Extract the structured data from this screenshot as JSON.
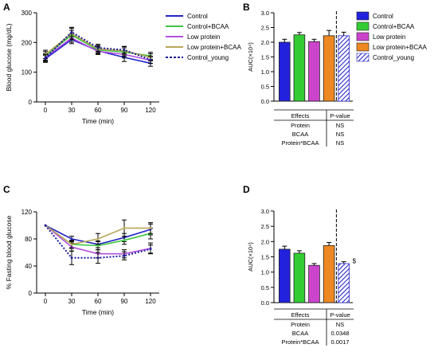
{
  "colors": {
    "control": "#2323c8",
    "control_bcaa": "#3fc63f",
    "low_protein": "#b24fe0",
    "low_protein_bcaa": "#b7a75a",
    "control_young": "#1b1b9a",
    "bar_control": "#2222dd",
    "bar_control_bcaa": "#33cc33",
    "bar_low_protein": "#cc44cc",
    "bar_low_protein_bcaa": "#ee8822",
    "bar_control_young_hatch": "#2a2acc"
  },
  "legend": {
    "line_entries": [
      "Control",
      "Control+BCAA",
      "Low protein",
      "Low protein+BCAA",
      "Control_young"
    ],
    "bar_entries": [
      "Control",
      "Control+BCAA",
      "Low protein",
      "Low protein+BCAA",
      "Control_young"
    ]
  },
  "chart_data": [
    {
      "panel": "A",
      "type": "line",
      "xlabel": "Time (min)",
      "ylabel": "Blood glucose (mg/dL)",
      "x": [
        0,
        30,
        60,
        90,
        120
      ],
      "xticks": [
        "0",
        "30",
        "60",
        "90",
        "120"
      ],
      "yticks": [
        "0",
        "100",
        "200",
        "300"
      ],
      "xlim": [
        -10,
        130
      ],
      "ylim": [
        0,
        300
      ],
      "series": [
        {
          "name": "Control",
          "values": [
            145,
            210,
            172,
            150,
            130
          ],
          "err": [
            12,
            14,
            12,
            14,
            10
          ],
          "style": "solid"
        },
        {
          "name": "Control+BCAA",
          "values": [
            155,
            225,
            175,
            168,
            155
          ],
          "err": [
            14,
            16,
            12,
            14,
            12
          ],
          "style": "solid"
        },
        {
          "name": "Low protein",
          "values": [
            150,
            215,
            170,
            160,
            140
          ],
          "err": [
            12,
            14,
            10,
            12,
            10
          ],
          "style": "solid"
        },
        {
          "name": "Low protein+BCAA",
          "values": [
            160,
            230,
            178,
            172,
            150
          ],
          "err": [
            14,
            18,
            12,
            14,
            12
          ],
          "style": "solid"
        },
        {
          "name": "Control_young",
          "values": [
            148,
            235,
            182,
            175,
            142
          ],
          "err": [
            12,
            16,
            12,
            12,
            12
          ],
          "style": "dotted"
        }
      ]
    },
    {
      "panel": "B",
      "type": "bar",
      "ylabel": "AUC(×10⁴)",
      "categories": [
        "Control",
        "Control+BCAA",
        "Low protein",
        "Low protein+BCAA",
        "Control_young"
      ],
      "values": [
        2.0,
        2.25,
        2.02,
        2.22,
        2.22
      ],
      "err": [
        0.1,
        0.08,
        0.08,
        0.18,
        0.12
      ],
      "yticks": [
        "0.0",
        "0.5",
        "1.0",
        "1.5",
        "2.0",
        "2.5",
        "3.0"
      ],
      "ylim": [
        0,
        3.0
      ],
      "divider_after": 4,
      "table": {
        "headers": [
          "Effects",
          "P-value"
        ],
        "rows": [
          [
            "Protein",
            "NS"
          ],
          [
            "BCAA",
            "NS"
          ],
          [
            "Protein*BCAA",
            "NS"
          ]
        ]
      }
    },
    {
      "panel": "C",
      "type": "line",
      "xlabel": "Time (min)",
      "ylabel": "% Fasting blood glucose",
      "x": [
        0,
        30,
        60,
        90,
        120
      ],
      "xticks": [
        "0",
        "30",
        "60",
        "90",
        "120"
      ],
      "yticks": [
        "0",
        "40",
        "80",
        "120"
      ],
      "xlim": [
        -10,
        130
      ],
      "ylim": [
        0,
        120
      ],
      "series": [
        {
          "name": "Control",
          "values": [
            100,
            80,
            72,
            82,
            94
          ],
          "err": [
            0,
            4,
            5,
            6,
            8
          ],
          "style": "solid"
        },
        {
          "name": "Control+BCAA",
          "values": [
            100,
            72,
            70,
            78,
            88
          ],
          "err": [
            0,
            5,
            6,
            6,
            8
          ],
          "style": "solid"
        },
        {
          "name": "Low protein",
          "values": [
            100,
            68,
            58,
            58,
            66
          ],
          "err": [
            0,
            6,
            6,
            6,
            8
          ],
          "style": "solid"
        },
        {
          "name": "Low protein+BCAA",
          "values": [
            100,
            72,
            80,
            96,
            96
          ],
          "err": [
            0,
            6,
            8,
            12,
            8
          ],
          "style": "solid"
        },
        {
          "name": "Control_young",
          "values": [
            100,
            52,
            52,
            55,
            65
          ],
          "err": [
            0,
            10,
            8,
            6,
            6
          ],
          "style": "dotted"
        }
      ]
    },
    {
      "panel": "D",
      "type": "bar",
      "ylabel": "AUC(×10⁴)",
      "categories": [
        "Control",
        "Control+BCAA",
        "Low protein",
        "Low protein+BCAA",
        "Control_young"
      ],
      "values": [
        1.75,
        1.62,
        1.22,
        1.87,
        1.28
      ],
      "err": [
        0.1,
        0.08,
        0.06,
        0.1,
        0.06
      ],
      "yticks": [
        "0.0",
        "0.5",
        "1.0",
        "1.5",
        "2.0",
        "2.5",
        "3.0"
      ],
      "ylim": [
        0,
        3.0
      ],
      "divider_after": 4,
      "annotation": "$",
      "table": {
        "headers": [
          "Effects",
          "P-value"
        ],
        "rows": [
          [
            "Protein",
            "NS"
          ],
          [
            "BCAA",
            "0.0348"
          ],
          [
            "Protein*BCAA",
            "0.0017"
          ]
        ]
      }
    }
  ]
}
